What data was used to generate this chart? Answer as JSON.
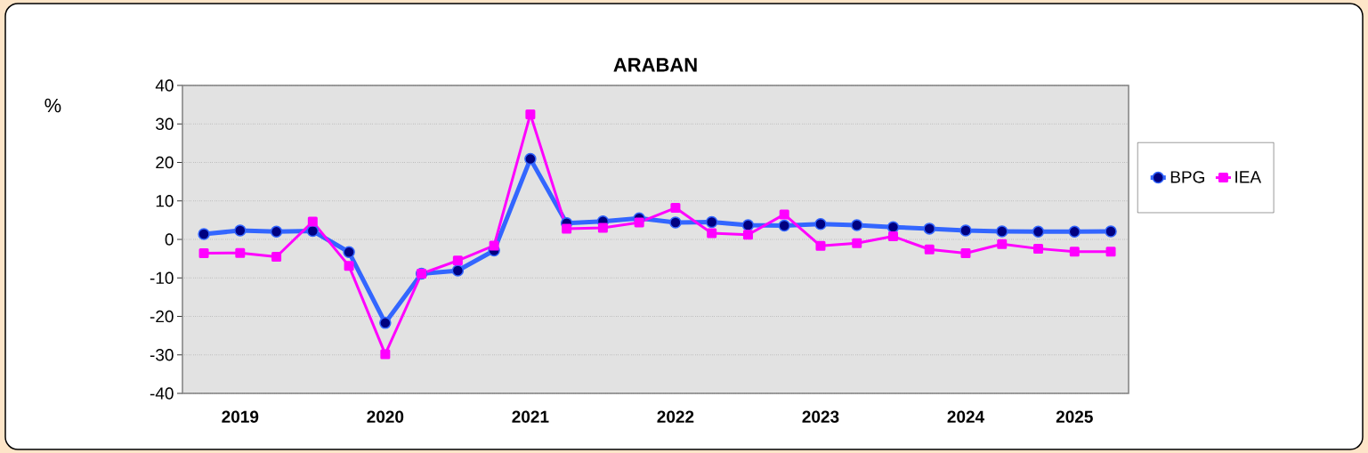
{
  "chart_data": {
    "type": "line",
    "title": "ARABAN",
    "ylabel": "%",
    "categories": [
      null,
      "2019",
      null,
      null,
      null,
      "2020",
      null,
      null,
      null,
      "2021",
      null,
      null,
      null,
      "2022",
      null,
      null,
      null,
      "2023",
      null,
      null,
      null,
      "2024",
      null,
      null,
      "2025",
      null
    ],
    "series": [
      {
        "name": "BPG",
        "color": "#3366ff",
        "marker": "circle",
        "values": [
          1.4,
          2.3,
          2.0,
          2.2,
          -3.3,
          -21.7,
          -8.9,
          -8.1,
          -2.9,
          20.9,
          4.2,
          4.7,
          5.5,
          4.4,
          4.5,
          3.7,
          3.6,
          4.0,
          3.7,
          3.2,
          2.8,
          2.3,
          2.1,
          2.0,
          2.0,
          2.1
        ]
      },
      {
        "name": "IEA",
        "color": "#ff00ff",
        "marker": "square",
        "values": [
          -3.6,
          -3.5,
          -4.5,
          4.6,
          -6.9,
          -29.8,
          -8.9,
          -5.5,
          -1.6,
          32.5,
          2.8,
          3.0,
          4.4,
          8.2,
          1.6,
          1.2,
          6.5,
          -1.7,
          -1.0,
          0.8,
          -2.6,
          -3.6,
          -1.2,
          -2.4,
          -3.2,
          -3.2
        ]
      }
    ],
    "ylim": [
      -40,
      40
    ],
    "yticks": [
      -40,
      -30,
      -20,
      -10,
      0,
      10,
      20,
      30,
      40
    ],
    "grid": "y",
    "legend": "right"
  }
}
